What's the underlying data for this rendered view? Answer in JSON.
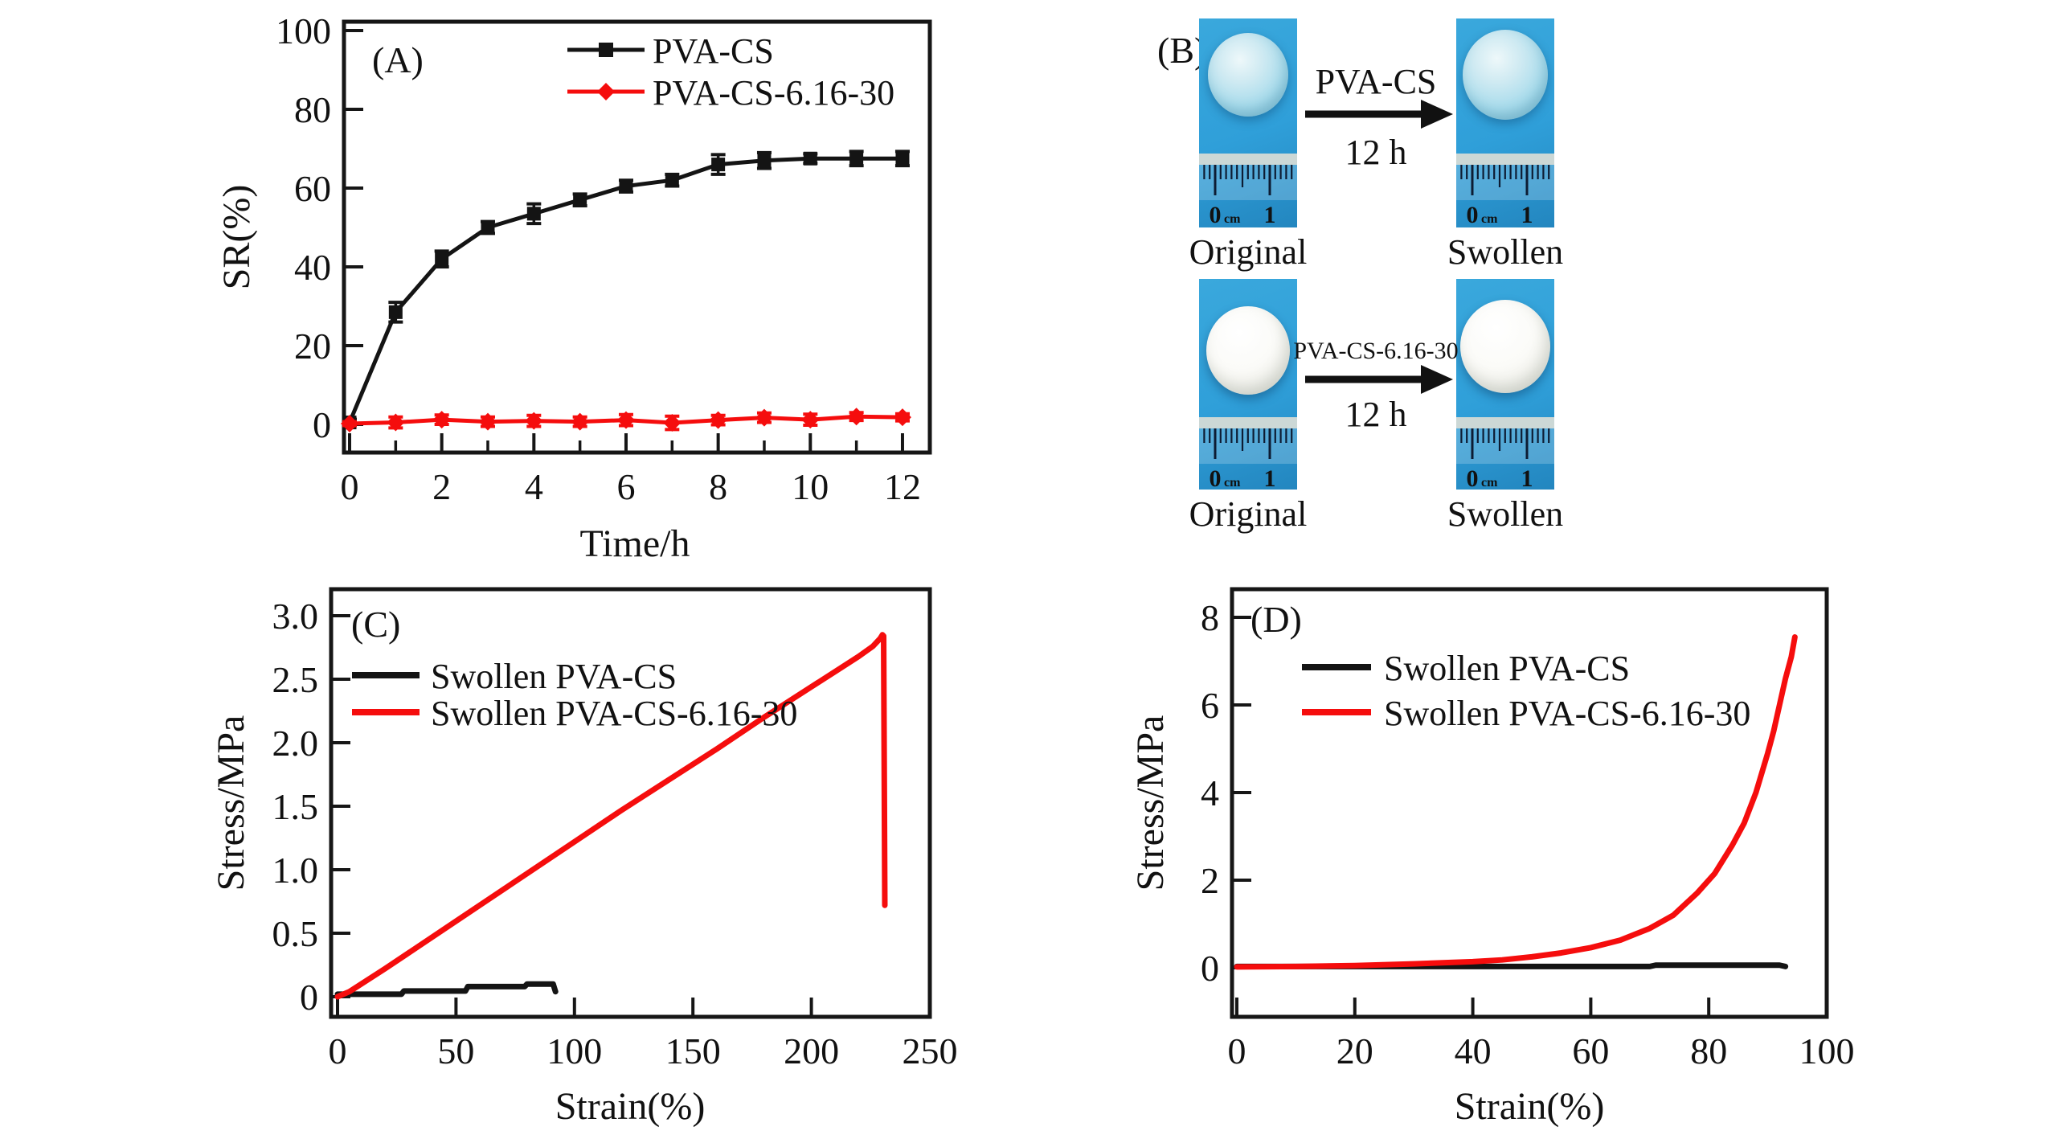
{
  "colors": {
    "text": "#111111",
    "axis": "#161616",
    "series_black": "#141414",
    "series_red": "#f50d0d",
    "photo_background": "#2f9fd9",
    "sphere_translucent": "#a9dcec",
    "sphere_white": "#f4f4ef",
    "ruler_band": "#ccd8d6",
    "ruler_tick": "#0d1c33",
    "ruler_text": "#0c1733"
  },
  "panel_b": {
    "panel_label": "(B)",
    "ruler": {
      "zero": "0",
      "unit": "cm",
      "one": "1"
    },
    "rows": [
      {
        "process_label": "PVA-CS",
        "duration_label": "12 h",
        "left_caption": "Original",
        "right_caption": "Swollen",
        "sphere": "translucent-blue"
      },
      {
        "process_label": "PVA-CS-6.16-30",
        "duration_label": "12 h",
        "left_caption": "Original",
        "right_caption": "Swollen",
        "sphere": "white-opaque"
      }
    ]
  },
  "chart_data": [
    {
      "id": "A",
      "type": "line",
      "panel_label": "(A)",
      "xlabel": "Time/h",
      "ylabel": "SR(%)",
      "xlim": [
        -0.12,
        12.72
      ],
      "ylim": [
        -7.1,
        102.2
      ],
      "grid": false,
      "legend_position": "top-center",
      "xticks": [
        0,
        2,
        4,
        6,
        8,
        10,
        12
      ],
      "xtick_labels": [
        "0",
        "2",
        "4",
        "6",
        "8",
        "10",
        "12"
      ],
      "xminor": [
        1,
        3,
        5,
        7,
        9,
        11
      ],
      "yticks": [
        0,
        20,
        40,
        60,
        80,
        100
      ],
      "ytick_labels": [
        "0",
        "20",
        "40",
        "60",
        "80",
        "100"
      ],
      "legend": [
        "PVA-CS",
        "PVA-CS-6.16-30"
      ],
      "series": [
        {
          "name": "PVA-CS",
          "color_key": "series_black",
          "marker": "square",
          "x": [
            0,
            1,
            2,
            3,
            4,
            5,
            6,
            7,
            8,
            9,
            10,
            11,
            12
          ],
          "y": [
            0.5,
            28.5,
            42,
            50,
            53.5,
            57,
            60.5,
            62,
            66,
            67,
            67.5,
            67.5,
            67.5
          ],
          "err": [
            0.8,
            2.5,
            2.0,
            1.5,
            2.5,
            1.5,
            1.5,
            1.5,
            2.5,
            2.0,
            1.2,
            1.8,
            1.8
          ]
        },
        {
          "name": "PVA-CS-6.16-30",
          "color_key": "series_red",
          "marker": "diamond",
          "x": [
            0,
            1,
            2,
            3,
            4,
            5,
            6,
            7,
            8,
            9,
            10,
            11,
            12
          ],
          "y": [
            0.2,
            0.5,
            1.2,
            0.7,
            0.9,
            0.7,
            1.1,
            0.4,
            1.1,
            1.7,
            1.2,
            2.0,
            1.8
          ],
          "err": [
            0.5,
            1.4,
            1.2,
            1.2,
            1.4,
            1.2,
            1.4,
            1.7,
            1.2,
            1.2,
            1.4,
            1.0,
            0.9
          ]
        }
      ]
    },
    {
      "id": "C",
      "type": "line",
      "panel_label": "(C)",
      "xlabel": "Strain(%)",
      "ylabel": "Stress/MPa",
      "xlim": [
        -3,
        250
      ],
      "ylim": [
        -0.16,
        3.2
      ],
      "grid": false,
      "legend_position": "upper-left",
      "xticks": [
        0,
        50,
        100,
        150,
        200,
        250
      ],
      "xtick_labels": [
        "0",
        "50",
        "100",
        "150",
        "200",
        "250"
      ],
      "yticks": [
        0,
        0.5,
        1,
        1.5,
        2,
        2.5,
        3
      ],
      "ytick_labels": [
        "0",
        "0.5",
        "1.0",
        "1.5",
        "2.0",
        "2.5",
        "3.0"
      ],
      "legend": [
        "Swollen PVA-CS",
        "Swollen PVA-CS-6.16-30"
      ],
      "series": [
        {
          "name": "Swollen PVA-CS",
          "color_key": "series_black",
          "marker": "none",
          "x": [
            0,
            27,
            28,
            54,
            55,
            79,
            80,
            91,
            92
          ],
          "y": [
            0.02,
            0.02,
            0.045,
            0.045,
            0.08,
            0.08,
            0.1,
            0.1,
            0.04
          ]
        },
        {
          "name": "Swollen PVA-CS-6.16-30",
          "color_key": "series_red",
          "marker": "none",
          "x": [
            0,
            5,
            10,
            20,
            40,
            60,
            80,
            100,
            120,
            140,
            160,
            180,
            200,
            210,
            220,
            226,
            229,
            230,
            230.5,
            231
          ],
          "y": [
            0,
            0.04,
            0.1,
            0.22,
            0.47,
            0.72,
            0.97,
            1.22,
            1.47,
            1.71,
            1.95,
            2.2,
            2.44,
            2.56,
            2.68,
            2.76,
            2.82,
            2.85,
            2.84,
            0.72
          ]
        }
      ]
    },
    {
      "id": "D",
      "type": "line",
      "panel_label": "(D)",
      "xlabel": "Strain(%)",
      "ylabel": "Stress/MPa",
      "xlim": [
        -1,
        100.5
      ],
      "ylim": [
        -1.1,
        8.6
      ],
      "grid": false,
      "legend_position": "upper-left",
      "xticks": [
        0,
        20,
        40,
        60,
        80,
        100
      ],
      "xtick_labels": [
        "0",
        "20",
        "40",
        "60",
        "80",
        "100"
      ],
      "yticks": [
        0,
        2,
        4,
        6,
        8
      ],
      "ytick_labels": [
        "0",
        "2",
        "4",
        "6",
        "8"
      ],
      "legend": [
        "Swollen PVA-CS",
        "Swollen PVA-CS-6.16-30"
      ],
      "series": [
        {
          "name": "Swollen PVA-CS",
          "color_key": "series_black",
          "marker": "none",
          "x": [
            0,
            70,
            71,
            92,
            93
          ],
          "y": [
            0.03,
            0.03,
            0.06,
            0.06,
            0.03
          ]
        },
        {
          "name": "Swollen PVA-CS-6.16-30",
          "color_key": "series_red",
          "marker": "none",
          "x": [
            0,
            10,
            20,
            30,
            40,
            45,
            50,
            55,
            60,
            65,
            70,
            74,
            78,
            81,
            84,
            86,
            88,
            90,
            91,
            92,
            93,
            94,
            94.6
          ],
          "y": [
            0.02,
            0.03,
            0.05,
            0.09,
            0.14,
            0.18,
            0.25,
            0.34,
            0.46,
            0.63,
            0.9,
            1.2,
            1.7,
            2.15,
            2.8,
            3.3,
            4.0,
            4.9,
            5.4,
            6.0,
            6.6,
            7.1,
            7.55
          ]
        }
      ]
    }
  ]
}
